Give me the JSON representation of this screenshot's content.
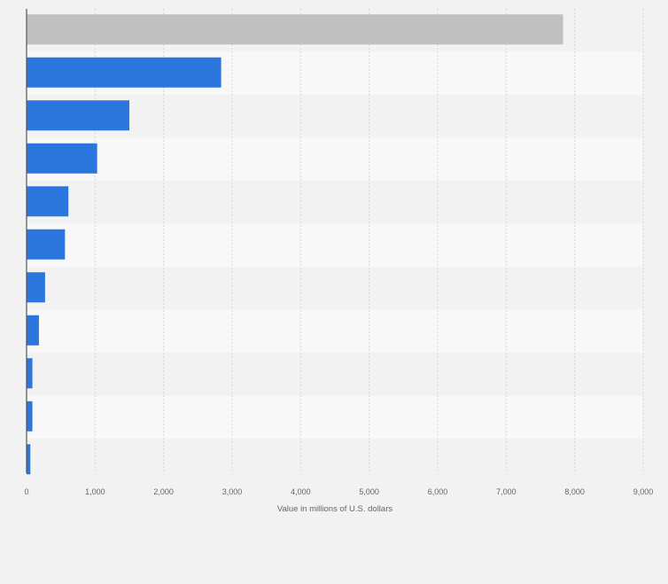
{
  "chart_data": {
    "type": "bar",
    "orientation": "horizontal",
    "categories": [
      "",
      "",
      "",
      "",
      "",
      "",
      "",
      "",
      "",
      "",
      ""
    ],
    "values": [
      7830,
      2840,
      1500,
      1030,
      610,
      560,
      270,
      180,
      85,
      85,
      55
    ],
    "bar_colors": [
      "#c0c0c0",
      "#2a76dd",
      "#2a76dd",
      "#2a76dd",
      "#2a76dd",
      "#2a76dd",
      "#2a76dd",
      "#2a76dd",
      "#2a76dd",
      "#2a76dd",
      "#2a76dd"
    ],
    "xlim": [
      0,
      9000
    ],
    "ticks": [
      0,
      1000,
      2000,
      3000,
      4000,
      5000,
      6000,
      7000,
      8000,
      9000
    ],
    "tick_labels": [
      "0",
      "1,000",
      "2,000",
      "3,000",
      "4,000",
      "5,000",
      "6,000",
      "7,000",
      "8,000",
      "9,000"
    ],
    "xlabel": "Value in millions of U.S. dollars",
    "ylabel": "",
    "title": "",
    "grid": true,
    "legend": "none"
  }
}
